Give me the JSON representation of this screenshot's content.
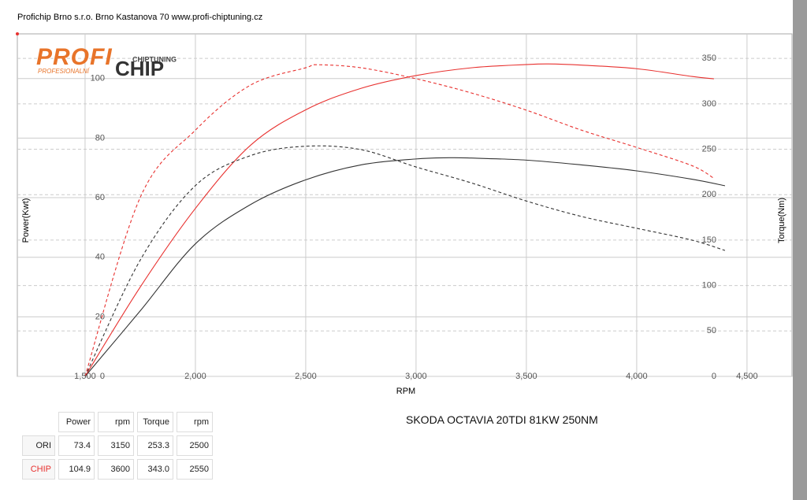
{
  "header": {
    "text": "Profichip Brno s.r.o. Brno Kastanova 70 www.profi-chiptuning.cz"
  },
  "logo": {
    "profi": "PROFI",
    "chiptuning": "CHIPTUNING",
    "profesionalni": "PROFESIONALNÍ",
    "chip": "CHIP"
  },
  "chart_data": {
    "type": "line",
    "subtitle": "SKODA OCTAVIA 20TDI 81KW 250NM",
    "x_label": "RPM",
    "y_label": "Power(Kwt)",
    "y2_label": "Torque(Nm)",
    "xlim": [
      1193,
      4704
    ],
    "ylim": [
      0,
      115
    ],
    "y2lim": [
      0,
      377
    ],
    "xticks": [
      {
        "value": 1500,
        "label": "1,500"
      },
      {
        "value": 2000,
        "label": "2,000"
      },
      {
        "value": 2500,
        "label": "2,500"
      },
      {
        "value": 3000,
        "label": "3,000"
      },
      {
        "value": 3500,
        "label": "3,500"
      },
      {
        "value": 4000,
        "label": "4,000"
      },
      {
        "value": 4500,
        "label": "4,500"
      }
    ],
    "yticks": [
      0,
      20,
      40,
      60,
      80,
      100
    ],
    "y2ticks": [
      0,
      50,
      100,
      150,
      200,
      250,
      300,
      350
    ],
    "grid": true,
    "series": [
      {
        "name": "ORI Power",
        "color": "#333333",
        "dash": false,
        "x": [
          1500,
          1750,
          2000,
          2250,
          2500,
          2750,
          3000,
          3150,
          3250,
          3500,
          3750,
          4000,
          4250,
          4400
        ],
        "values": [
          0,
          22,
          44.5,
          57.7,
          66,
          71,
          73,
          73.4,
          73.3,
          72.6,
          71,
          69,
          66.2,
          64
        ]
      },
      {
        "name": "CHIP Power",
        "color": "#e8312f",
        "dash": false,
        "x": [
          1500,
          1750,
          2000,
          2250,
          2500,
          2750,
          3000,
          3250,
          3500,
          3600,
          3750,
          4000,
          4250,
          4350
        ],
        "values": [
          0,
          30,
          56.4,
          77.6,
          89.5,
          96.7,
          101,
          103.6,
          104.7,
          104.9,
          104.5,
          103.3,
          100.7,
          99.9
        ]
      },
      {
        "name": "ORI Torque",
        "color": "#333333",
        "dash": true,
        "axis": "y2",
        "x": [
          1500,
          1750,
          2000,
          2250,
          2500,
          2750,
          3000,
          3250,
          3500,
          3750,
          4000,
          4250,
          4400
        ],
        "values": [
          0,
          128,
          210,
          243,
          253.3,
          249.6,
          230.5,
          213,
          193,
          176,
          163,
          150,
          138.6
        ]
      },
      {
        "name": "CHIP Torque",
        "color": "#e8312f",
        "dash": true,
        "axis": "y2",
        "x": [
          1500,
          1750,
          2000,
          2250,
          2500,
          2550,
          2750,
          3000,
          3250,
          3500,
          3750,
          4000,
          4250,
          4350
        ],
        "values": [
          0,
          197,
          271,
          320.6,
          339.7,
          343,
          339.7,
          327.6,
          312,
          293,
          271,
          252,
          232,
          218
        ]
      }
    ]
  },
  "table": {
    "header": [
      "Power",
      "rpm",
      "Torque",
      "rpm"
    ],
    "rows": [
      [
        "ORI",
        "73.4",
        "3150",
        "253.3",
        "2500"
      ],
      [
        "CHIP",
        "104.9",
        "3600",
        "343.0",
        "2550"
      ]
    ],
    "row_colors": [
      "#222222",
      "#e8312f"
    ]
  }
}
